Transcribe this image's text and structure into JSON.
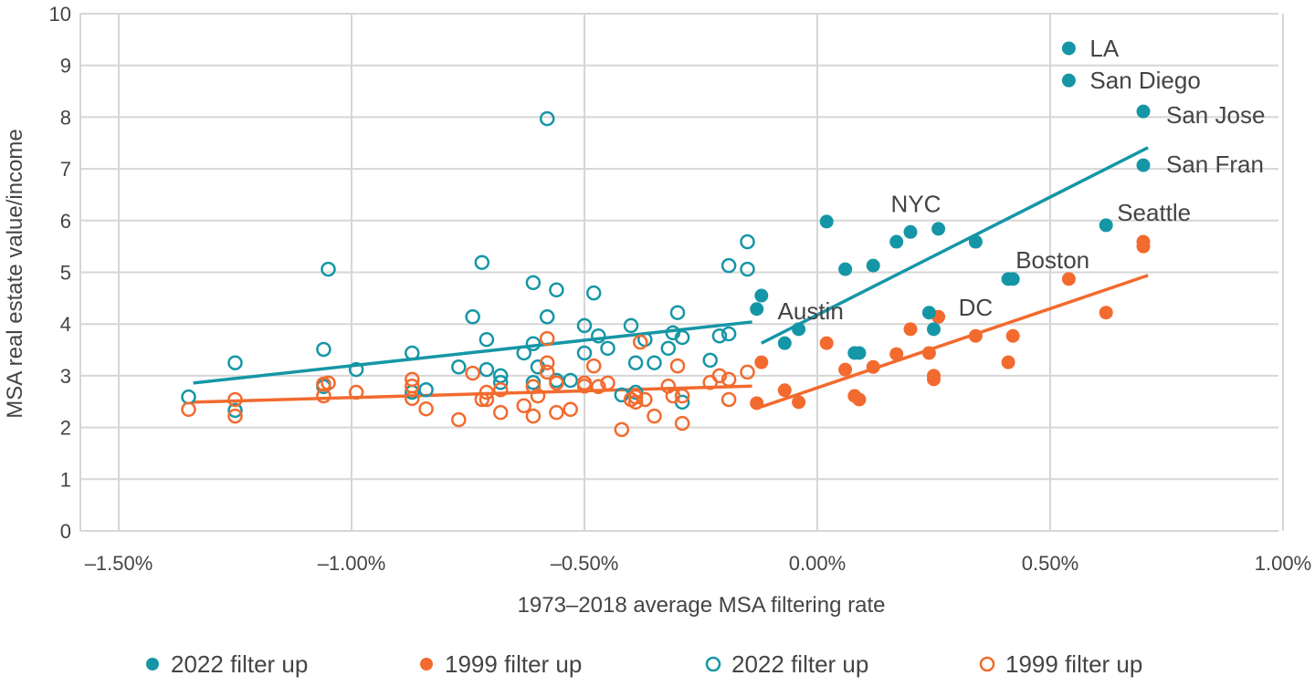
{
  "chart_data": {
    "type": "scatter",
    "title": "",
    "xlabel": "1973–2018 average MSA filtering rate",
    "ylabel": "MSA real estate value/income",
    "xlim": [
      -1.6,
      1.0
    ],
    "ylim": [
      0,
      10
    ],
    "x_ticks": [
      -1.5,
      -1.0,
      -0.5,
      0.0,
      0.5,
      1.0
    ],
    "x_tick_labels": [
      "–1.50%",
      "–1.00%",
      "–0.50%",
      "0.00%",
      "0.50%",
      "1.00%"
    ],
    "y_ticks": [
      0,
      1,
      2,
      3,
      4,
      5,
      6,
      7,
      8,
      9,
      10
    ],
    "y_tick_labels": [
      "0",
      "1",
      "2",
      "3",
      "4",
      "5",
      "6",
      "7",
      "8",
      "9",
      "10"
    ],
    "x_unit": "percent",
    "grid": true,
    "legend_placement": "bottom",
    "colors": {
      "teal": "#1596a6",
      "orange": "#f26a2e",
      "grid": "#d6d6d6",
      "text": "#444444"
    },
    "series": [
      {
        "name": "2022 filter up",
        "marker": "filled",
        "color": "#1596a6",
        "points": [
          [
            -0.13,
            4.29
          ],
          [
            -0.12,
            4.55
          ],
          [
            -0.07,
            3.63
          ],
          [
            -0.04,
            3.9
          ],
          [
            0.02,
            5.98
          ],
          [
            0.06,
            5.06
          ],
          [
            0.12,
            5.13
          ],
          [
            0.17,
            5.59
          ],
          [
            0.2,
            5.78
          ],
          [
            0.26,
            5.84
          ],
          [
            0.34,
            5.59
          ],
          [
            0.41,
            4.87
          ],
          [
            0.42,
            4.87
          ],
          [
            0.08,
            3.44
          ],
          [
            0.09,
            3.44
          ],
          [
            0.24,
            4.22
          ],
          [
            0.25,
            3.9
          ],
          [
            0.62,
            5.91
          ],
          [
            0.7,
            7.07
          ],
          [
            0.7,
            8.11
          ],
          [
            0.54,
            8.71
          ],
          [
            0.54,
            9.33
          ]
        ],
        "trend": [
          [
            -0.12,
            3.63
          ],
          [
            0.71,
            7.41
          ]
        ]
      },
      {
        "name": "1999 filter up",
        "marker": "filled",
        "color": "#f26a2e",
        "points": [
          [
            -0.13,
            2.47
          ],
          [
            -0.12,
            3.26
          ],
          [
            -0.07,
            2.72
          ],
          [
            -0.04,
            2.49
          ],
          [
            0.02,
            3.63
          ],
          [
            0.06,
            3.12
          ],
          [
            0.08,
            2.61
          ],
          [
            0.09,
            2.54
          ],
          [
            0.12,
            3.17
          ],
          [
            0.17,
            3.42
          ],
          [
            0.2,
            3.9
          ],
          [
            0.24,
            3.44
          ],
          [
            0.25,
            3.0
          ],
          [
            0.25,
            2.93
          ],
          [
            0.26,
            4.14
          ],
          [
            0.34,
            3.77
          ],
          [
            0.41,
            3.26
          ],
          [
            0.42,
            3.77
          ],
          [
            0.54,
            4.87
          ],
          [
            0.62,
            4.22
          ],
          [
            0.7,
            5.59
          ],
          [
            0.7,
            5.5
          ]
        ],
        "trend": [
          [
            -0.12,
            2.4
          ],
          [
            0.71,
            4.94
          ]
        ]
      },
      {
        "name": "2022 filter up",
        "marker": "open",
        "color": "#1596a6",
        "points": [
          [
            -1.35,
            2.59
          ],
          [
            -1.25,
            3.25
          ],
          [
            -1.25,
            2.33
          ],
          [
            -1.06,
            3.51
          ],
          [
            -1.05,
            5.06
          ],
          [
            -1.06,
            2.79
          ],
          [
            -0.99,
            3.12
          ],
          [
            -0.87,
            3.44
          ],
          [
            -0.87,
            2.68
          ],
          [
            -0.84,
            2.73
          ],
          [
            -0.77,
            3.17
          ],
          [
            -0.74,
            4.14
          ],
          [
            -0.72,
            5.19
          ],
          [
            -0.71,
            3.7
          ],
          [
            -0.71,
            3.12
          ],
          [
            -0.68,
            3.0
          ],
          [
            -0.68,
            2.87
          ],
          [
            -0.63,
            3.44
          ],
          [
            -0.61,
            4.8
          ],
          [
            -0.61,
            3.62
          ],
          [
            -0.61,
            2.87
          ],
          [
            -0.6,
            3.17
          ],
          [
            -0.58,
            4.14
          ],
          [
            -0.58,
            7.97
          ],
          [
            -0.56,
            4.66
          ],
          [
            -0.56,
            2.91
          ],
          [
            -0.53,
            2.91
          ],
          [
            -0.5,
            3.44
          ],
          [
            -0.5,
            3.97
          ],
          [
            -0.48,
            4.6
          ],
          [
            -0.47,
            3.77
          ],
          [
            -0.45,
            3.53
          ],
          [
            -0.42,
            2.63
          ],
          [
            -0.4,
            3.97
          ],
          [
            -0.39,
            2.68
          ],
          [
            -0.39,
            3.25
          ],
          [
            -0.37,
            3.7
          ],
          [
            -0.35,
            3.25
          ],
          [
            -0.32,
            3.53
          ],
          [
            -0.31,
            3.83
          ],
          [
            -0.3,
            4.22
          ],
          [
            -0.29,
            3.74
          ],
          [
            -0.29,
            2.49
          ],
          [
            -0.23,
            3.3
          ],
          [
            -0.21,
            3.77
          ],
          [
            -0.19,
            5.13
          ],
          [
            -0.19,
            3.81
          ],
          [
            -0.15,
            5.06
          ],
          [
            -0.15,
            5.59
          ]
        ],
        "trend": [
          [
            -1.34,
            2.86
          ],
          [
            -0.14,
            4.04
          ]
        ]
      },
      {
        "name": "1999 filter up",
        "marker": "open",
        "color": "#f26a2e",
        "points": [
          [
            -1.35,
            2.35
          ],
          [
            -1.25,
            2.54
          ],
          [
            -1.25,
            2.22
          ],
          [
            -1.06,
            2.61
          ],
          [
            -1.06,
            2.84
          ],
          [
            -1.05,
            2.86
          ],
          [
            -0.99,
            2.68
          ],
          [
            -0.87,
            2.93
          ],
          [
            -0.87,
            2.8
          ],
          [
            -0.87,
            2.56
          ],
          [
            -0.84,
            2.36
          ],
          [
            -0.77,
            2.15
          ],
          [
            -0.74,
            3.05
          ],
          [
            -0.72,
            2.54
          ],
          [
            -0.71,
            2.68
          ],
          [
            -0.71,
            2.54
          ],
          [
            -0.68,
            2.73
          ],
          [
            -0.68,
            2.29
          ],
          [
            -0.63,
            2.42
          ],
          [
            -0.61,
            2.22
          ],
          [
            -0.61,
            2.79
          ],
          [
            -0.6,
            2.61
          ],
          [
            -0.58,
            3.25
          ],
          [
            -0.58,
            3.07
          ],
          [
            -0.58,
            3.72
          ],
          [
            -0.56,
            2.29
          ],
          [
            -0.56,
            2.86
          ],
          [
            -0.53,
            2.35
          ],
          [
            -0.5,
            2.86
          ],
          [
            -0.5,
            2.8
          ],
          [
            -0.48,
            3.19
          ],
          [
            -0.47,
            2.79
          ],
          [
            -0.45,
            2.86
          ],
          [
            -0.42,
            1.96
          ],
          [
            -0.4,
            2.54
          ],
          [
            -0.39,
            2.49
          ],
          [
            -0.39,
            2.59
          ],
          [
            -0.38,
            3.65
          ],
          [
            -0.37,
            2.54
          ],
          [
            -0.35,
            2.22
          ],
          [
            -0.32,
            2.8
          ],
          [
            -0.31,
            2.61
          ],
          [
            -0.3,
            3.19
          ],
          [
            -0.29,
            2.61
          ],
          [
            -0.29,
            2.08
          ],
          [
            -0.23,
            2.87
          ],
          [
            -0.21,
            3.0
          ],
          [
            -0.19,
            2.54
          ],
          [
            -0.19,
            2.93
          ],
          [
            -0.15,
            3.07
          ]
        ],
        "trend": [
          [
            -1.34,
            2.49
          ],
          [
            -0.14,
            2.8
          ]
        ]
      }
    ],
    "annotations": [
      {
        "text": "LA",
        "x": 0.54,
        "y": 9.33
      },
      {
        "text": "San Diego",
        "x": 0.54,
        "y": 8.71
      },
      {
        "text": "San Jose",
        "x": 0.7,
        "y": 8.11
      },
      {
        "text": "San Fran",
        "x": 0.7,
        "y": 7.07
      },
      {
        "text": "Seattle",
        "x": 0.62,
        "y": 5.91
      },
      {
        "text": "NYC",
        "x": 0.2,
        "y": 5.78
      },
      {
        "text": "Boston",
        "x": 0.42,
        "y": 4.87
      },
      {
        "text": "Austin",
        "x": 0.08,
        "y": 3.9
      },
      {
        "text": "DC",
        "x": 0.34,
        "y": 3.77
      }
    ]
  }
}
